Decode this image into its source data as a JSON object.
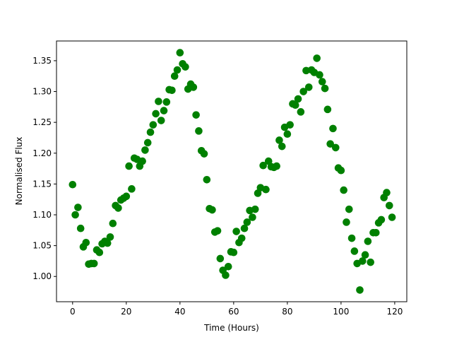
{
  "chart_data": {
    "type": "scatter",
    "title": "",
    "xlabel": "Time (Hours)",
    "ylabel": "Normalised Flux",
    "xlim": [
      -6,
      124.5
    ],
    "ylim": [
      0.959,
      1.382
    ],
    "xticks": [
      0,
      20,
      40,
      60,
      80,
      100,
      120
    ],
    "xtick_labels": [
      "0",
      "20",
      "40",
      "60",
      "80",
      "100",
      "120"
    ],
    "yticks": [
      1.0,
      1.05,
      1.1,
      1.15,
      1.2,
      1.25,
      1.3,
      1.35
    ],
    "ytick_labels": [
      "1.00",
      "1.05",
      "1.10",
      "1.15",
      "1.20",
      "1.25",
      "1.30",
      "1.35"
    ],
    "grid": false,
    "marker_color": "#008000",
    "x": [
      0,
      1,
      2,
      3,
      4,
      5,
      6,
      7,
      8,
      9,
      10,
      11,
      12,
      13,
      14,
      15,
      16,
      17,
      18,
      19,
      20,
      21,
      22,
      23,
      24,
      25,
      26,
      27,
      28,
      29,
      30,
      31,
      32,
      33,
      34,
      35,
      36,
      37,
      38,
      39,
      40,
      41,
      42,
      43,
      44,
      45,
      46,
      47,
      48,
      49,
      50,
      51,
      52,
      53,
      54,
      55,
      56,
      57,
      58,
      59,
      60,
      61,
      62,
      63,
      64,
      65,
      66,
      67,
      68,
      69,
      70,
      71,
      72,
      73,
      74,
      75,
      76,
      77,
      78,
      79,
      80,
      81,
      82,
      83,
      84,
      85,
      86,
      87,
      88,
      89,
      90,
      91,
      92,
      93,
      94,
      95,
      96,
      97,
      98,
      99,
      100,
      101,
      102,
      103,
      104,
      105,
      106,
      107,
      108,
      109,
      110,
      111,
      112,
      113,
      114,
      115,
      116,
      117,
      118,
      119
    ],
    "y": [
      1.149,
      1.1,
      1.112,
      1.078,
      1.048,
      1.055,
      1.02,
      1.021,
      1.021,
      1.043,
      1.039,
      1.053,
      1.057,
      1.054,
      1.064,
      1.086,
      1.115,
      1.111,
      1.124,
      1.127,
      1.13,
      1.179,
      1.142,
      1.192,
      1.19,
      1.179,
      1.187,
      1.205,
      1.217,
      1.234,
      1.246,
      1.264,
      1.284,
      1.253,
      1.269,
      1.283,
      1.303,
      1.302,
      1.325,
      1.335,
      1.363,
      1.345,
      1.34,
      1.304,
      1.312,
      1.307,
      1.262,
      1.236,
      1.204,
      1.199,
      1.157,
      1.11,
      1.108,
      1.072,
      1.074,
      1.029,
      1.01,
      1.002,
      1.016,
      1.04,
      1.039,
      1.073,
      1.055,
      1.062,
      1.078,
      1.088,
      1.107,
      1.096,
      1.109,
      1.135,
      1.144,
      1.18,
      1.141,
      1.187,
      1.178,
      1.177,
      1.179,
      1.221,
      1.211,
      1.242,
      1.231,
      1.246,
      1.28,
      1.278,
      1.288,
      1.267,
      1.3,
      1.334,
      1.307,
      1.335,
      1.331,
      1.354,
      1.327,
      1.316,
      1.305,
      1.271,
      1.215,
      1.24,
      1.209,
      1.176,
      1.172,
      1.14,
      1.088,
      1.109,
      1.062,
      1.041,
      1.021,
      0.978,
      1.025,
      1.035,
      1.057,
      1.023,
      1.071,
      1.071,
      1.087,
      1.092,
      1.128,
      1.136,
      1.115,
      1.096
    ]
  }
}
